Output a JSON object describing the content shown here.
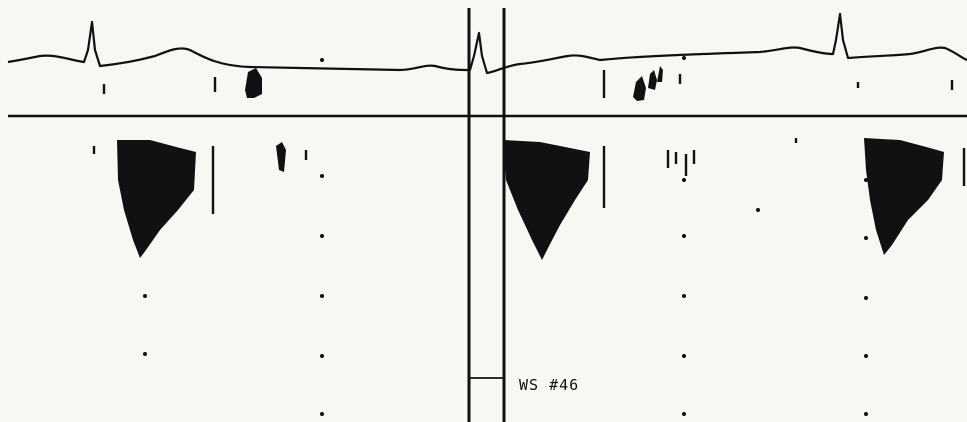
{
  "annotation": {
    "label": "WS #46"
  },
  "colors": {
    "background": "#f7f7f4",
    "ink": "#111111"
  }
}
